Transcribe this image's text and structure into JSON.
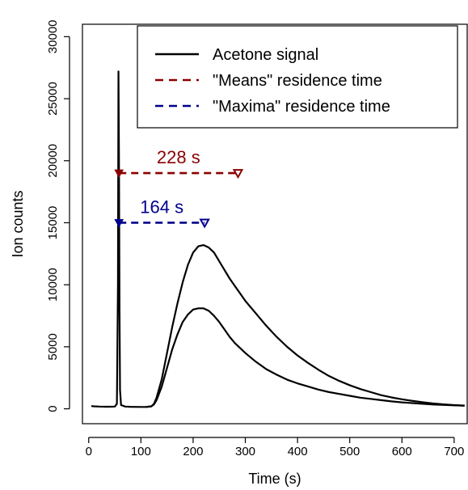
{
  "chart_data": {
    "type": "line",
    "title": "",
    "xlabel": "Time (s)",
    "ylabel": "Ion counts",
    "xlim": [
      -12,
      725
    ],
    "ylim": [
      -1200,
      31000
    ],
    "x_ticks": [
      0,
      100,
      200,
      300,
      400,
      500,
      600,
      700
    ],
    "y_ticks": [
      0,
      5000,
      10000,
      15000,
      20000,
      25000,
      30000
    ],
    "grid": false,
    "legend_position": "top-right",
    "legend": [
      {
        "label": "Acetone signal",
        "color": "#000000",
        "style": "solid"
      },
      {
        "label": "\"Means\" residence time",
        "color": "#8b0000",
        "style": "dashed"
      },
      {
        "label": "\"Maxima\" residence time",
        "color": "#00008b",
        "style": "dashed"
      }
    ],
    "series": [
      {
        "color": "#000000",
        "points": [
          [
            5,
            220
          ],
          [
            10,
            200
          ],
          [
            20,
            180
          ],
          [
            30,
            170
          ],
          [
            40,
            170
          ],
          [
            50,
            180
          ],
          [
            54,
            400
          ],
          [
            56,
            10000
          ],
          [
            57,
            27200
          ],
          [
            58,
            20000
          ],
          [
            59,
            8000
          ],
          [
            60,
            1500
          ],
          [
            62,
            300
          ],
          [
            70,
            180
          ],
          [
            80,
            160
          ],
          [
            100,
            150
          ],
          [
            110,
            150
          ],
          [
            120,
            200
          ],
          [
            125,
            400
          ],
          [
            130,
            900
          ],
          [
            140,
            2400
          ],
          [
            150,
            4500
          ],
          [
            160,
            6600
          ],
          [
            170,
            8500
          ],
          [
            180,
            10200
          ],
          [
            190,
            11600
          ],
          [
            200,
            12600
          ],
          [
            210,
            13100
          ],
          [
            220,
            13200
          ],
          [
            230,
            13000
          ],
          [
            240,
            12600
          ],
          [
            250,
            11900
          ],
          [
            260,
            11200
          ],
          [
            270,
            10500
          ],
          [
            280,
            9900
          ],
          [
            290,
            9300
          ],
          [
            300,
            8700
          ],
          [
            320,
            7700
          ],
          [
            340,
            6700
          ],
          [
            360,
            5800
          ],
          [
            380,
            5000
          ],
          [
            400,
            4300
          ],
          [
            420,
            3700
          ],
          [
            440,
            3150
          ],
          [
            460,
            2650
          ],
          [
            480,
            2250
          ],
          [
            500,
            1900
          ],
          [
            520,
            1600
          ],
          [
            540,
            1350
          ],
          [
            560,
            1100
          ],
          [
            580,
            920
          ],
          [
            600,
            770
          ],
          [
            620,
            640
          ],
          [
            640,
            530
          ],
          [
            660,
            430
          ],
          [
            680,
            360
          ],
          [
            700,
            300
          ],
          [
            720,
            260
          ]
        ]
      },
      {
        "color": "#000000",
        "points": [
          [
            110,
            150
          ],
          [
            120,
            200
          ],
          [
            125,
            350
          ],
          [
            130,
            700
          ],
          [
            140,
            1800
          ],
          [
            150,
            3300
          ],
          [
            160,
            4800
          ],
          [
            170,
            6000
          ],
          [
            180,
            7000
          ],
          [
            190,
            7600
          ],
          [
            200,
            8000
          ],
          [
            210,
            8100
          ],
          [
            220,
            8100
          ],
          [
            230,
            7900
          ],
          [
            240,
            7500
          ],
          [
            250,
            7000
          ],
          [
            260,
            6400
          ],
          [
            270,
            5800
          ],
          [
            280,
            5300
          ],
          [
            290,
            4900
          ],
          [
            300,
            4500
          ],
          [
            320,
            3800
          ],
          [
            340,
            3200
          ],
          [
            360,
            2750
          ],
          [
            380,
            2350
          ],
          [
            400,
            2050
          ],
          [
            420,
            1800
          ],
          [
            440,
            1550
          ],
          [
            460,
            1350
          ],
          [
            480,
            1200
          ],
          [
            500,
            1050
          ],
          [
            520,
            900
          ],
          [
            540,
            800
          ],
          [
            560,
            700
          ],
          [
            580,
            600
          ],
          [
            600,
            520
          ],
          [
            620,
            460
          ],
          [
            640,
            400
          ],
          [
            660,
            350
          ],
          [
            680,
            310
          ],
          [
            700,
            280
          ],
          [
            720,
            250
          ]
        ]
      }
    ],
    "annotations": [
      {
        "label": "228 s",
        "color": "#8b0000",
        "x_start": 58,
        "x_end": 286,
        "y": 19000
      },
      {
        "label": "164 s",
        "color": "#00008b",
        "x_start": 58,
        "x_end": 222,
        "y": 15000
      }
    ]
  }
}
